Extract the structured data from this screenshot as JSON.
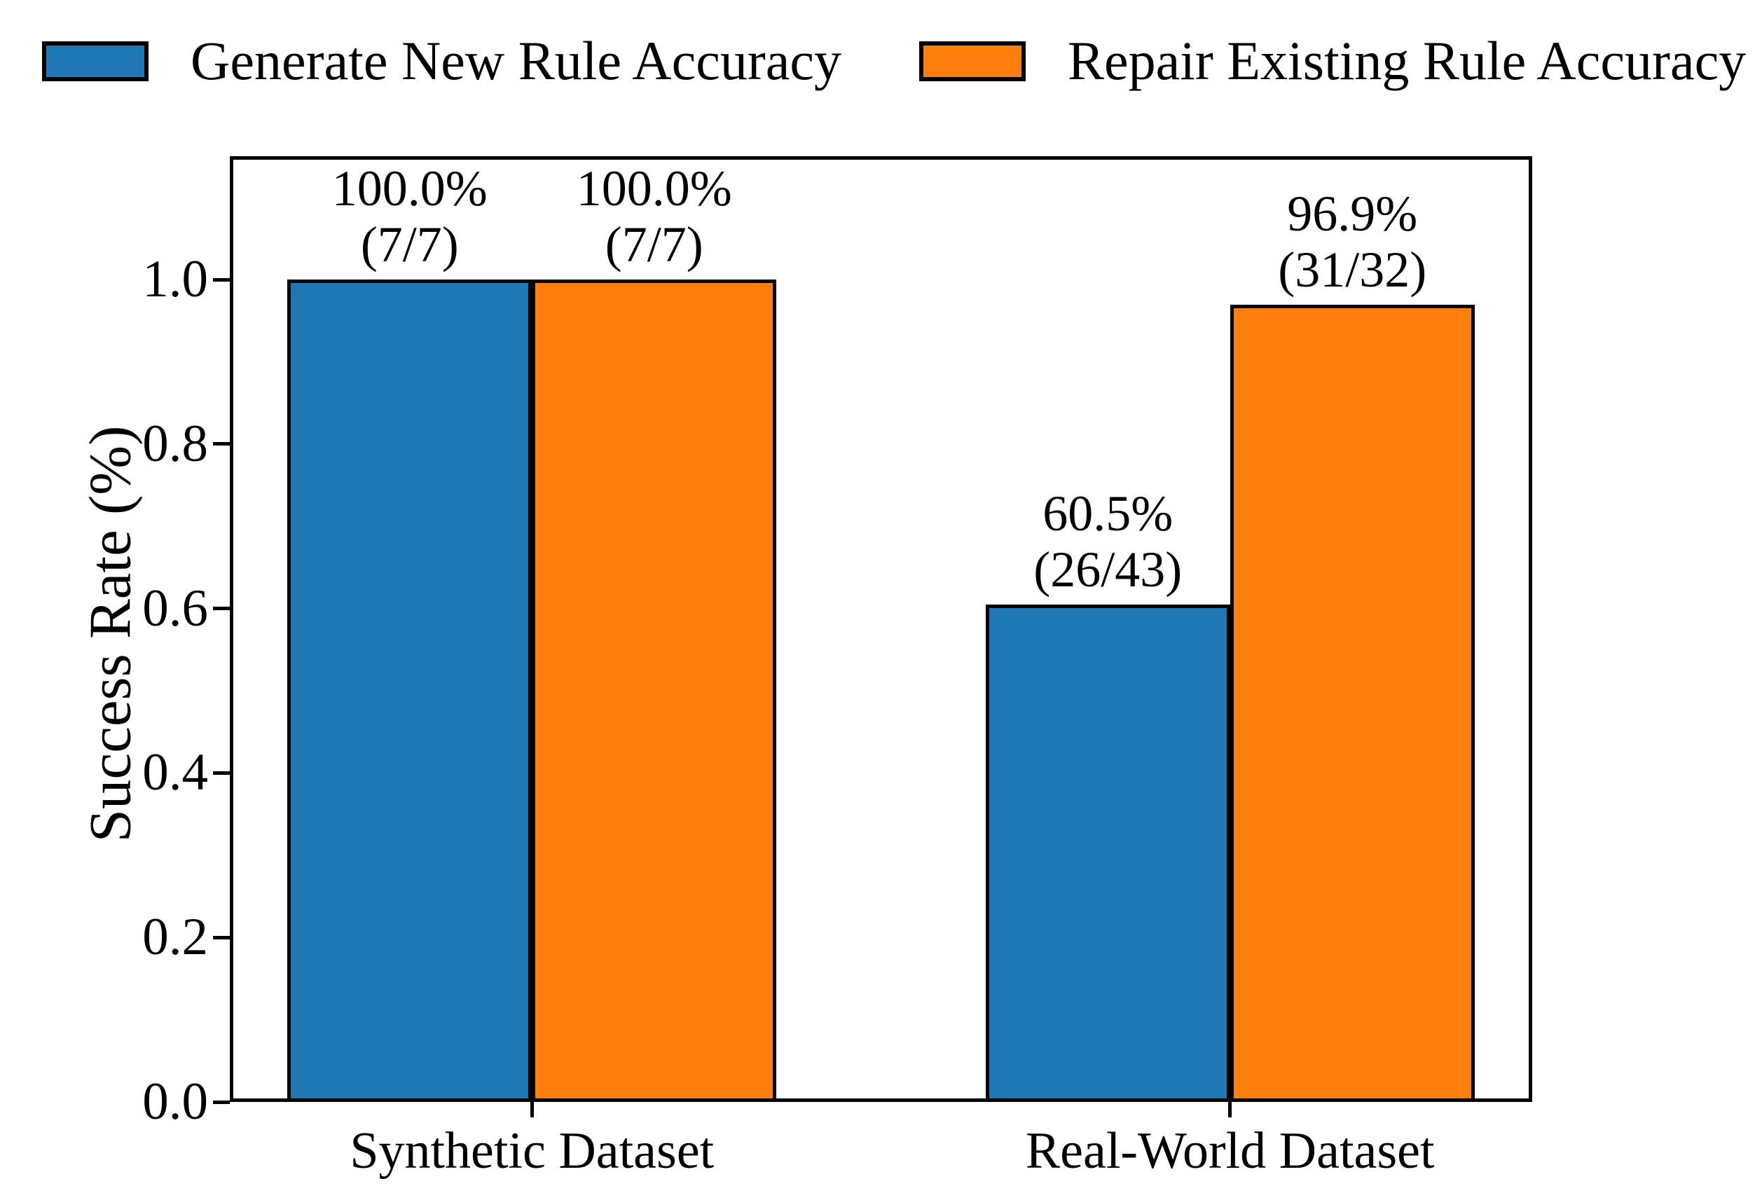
{
  "legend": {
    "items": [
      {
        "label": "Generate New Rule Accuracy",
        "color": "#1f77b4"
      },
      {
        "label": "Repair Existing Rule Accuracy",
        "color": "#ff7f0e"
      }
    ]
  },
  "chart_data": {
    "type": "bar",
    "title": "",
    "categories": [
      "Synthetic Dataset",
      "Real-World Dataset"
    ],
    "series": [
      {
        "name": "Generate New Rule Accuracy",
        "color": "#1f77b4",
        "values": [
          1.0,
          0.605
        ],
        "annotations": [
          {
            "line1": "100.0%",
            "line2": "(7/7)"
          },
          {
            "line1": "60.5%",
            "line2": "(26/43)"
          }
        ]
      },
      {
        "name": "Repair Existing Rule Accuracy",
        "color": "#ff7f0e",
        "values": [
          1.0,
          0.969
        ],
        "annotations": [
          {
            "line1": "100.0%",
            "line2": "(7/7)"
          },
          {
            "line1": "96.9%",
            "line2": "(31/32)"
          }
        ]
      }
    ],
    "xlabel": "",
    "ylabel": "Success Rate (%)",
    "ylim": [
      0,
      1.15
    ],
    "yticks": [
      {
        "value": 0.0,
        "label": "0.0"
      },
      {
        "value": 0.2,
        "label": "0.2"
      },
      {
        "value": 0.4,
        "label": "0.4"
      },
      {
        "value": 0.6,
        "label": "0.6"
      },
      {
        "value": 0.8,
        "label": "0.8"
      },
      {
        "value": 1.0,
        "label": "1.0"
      }
    ],
    "grid": false,
    "legend_position": "top",
    "bar_edge_color": "#000000",
    "axis_color": "#000000"
  }
}
